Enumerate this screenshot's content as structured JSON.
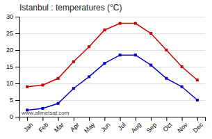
{
  "chart_data": {
    "type": "line",
    "title": "Istanbul : temperatures (°C)",
    "categories": [
      "Jan",
      "Feb",
      "Mar",
      "Apr",
      "May",
      "Jun",
      "Jul",
      "Aug",
      "Sep",
      "Oct",
      "Nov",
      "Dec"
    ],
    "series": [
      {
        "color": "#cc0000",
        "values": [
          9,
          9.5,
          11.5,
          16.5,
          21,
          26,
          28,
          28,
          25,
          20,
          15,
          11
        ]
      },
      {
        "color": "#0000cc",
        "values": [
          2,
          2.5,
          4,
          8.5,
          12,
          16,
          18.5,
          18.5,
          15.5,
          11.5,
          9,
          5
        ]
      }
    ],
    "ylim": [
      0,
      30
    ],
    "yticks": [
      0,
      5,
      10,
      15,
      20,
      25,
      30
    ],
    "grid": true,
    "marker": "square",
    "annotations": [
      "www.allmetsat.com"
    ]
  }
}
